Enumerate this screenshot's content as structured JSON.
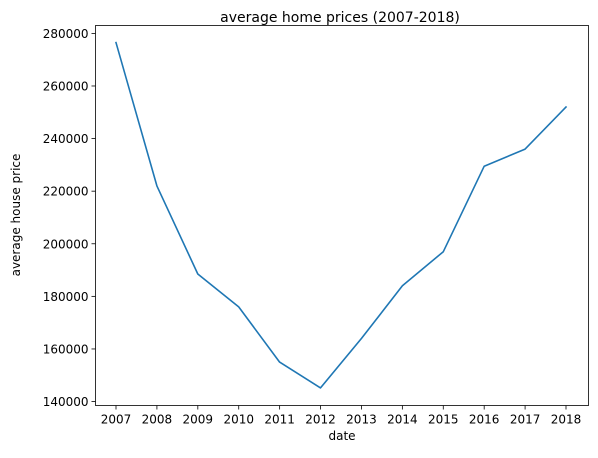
{
  "chart_data": {
    "type": "line",
    "title": "average home prices (2007-2018)",
    "xlabel": "date",
    "ylabel": "average house price",
    "x": [
      "2007",
      "2008",
      "2009",
      "2010",
      "2011",
      "2012",
      "2013",
      "2014",
      "2015",
      "2016",
      "2017",
      "2018"
    ],
    "series": [
      {
        "values": [
          276500,
          222000,
          188500,
          176000,
          155000,
          145200,
          164000,
          184000,
          197000,
          229500,
          236000,
          252000
        ]
      }
    ],
    "yticks": [
      "140000",
      "160000",
      "180000",
      "200000",
      "220000",
      "240000",
      "260000",
      "280000"
    ],
    "ylim": [
      138500,
      283000
    ],
    "grid": false,
    "line_color": "#1f77b4"
  }
}
